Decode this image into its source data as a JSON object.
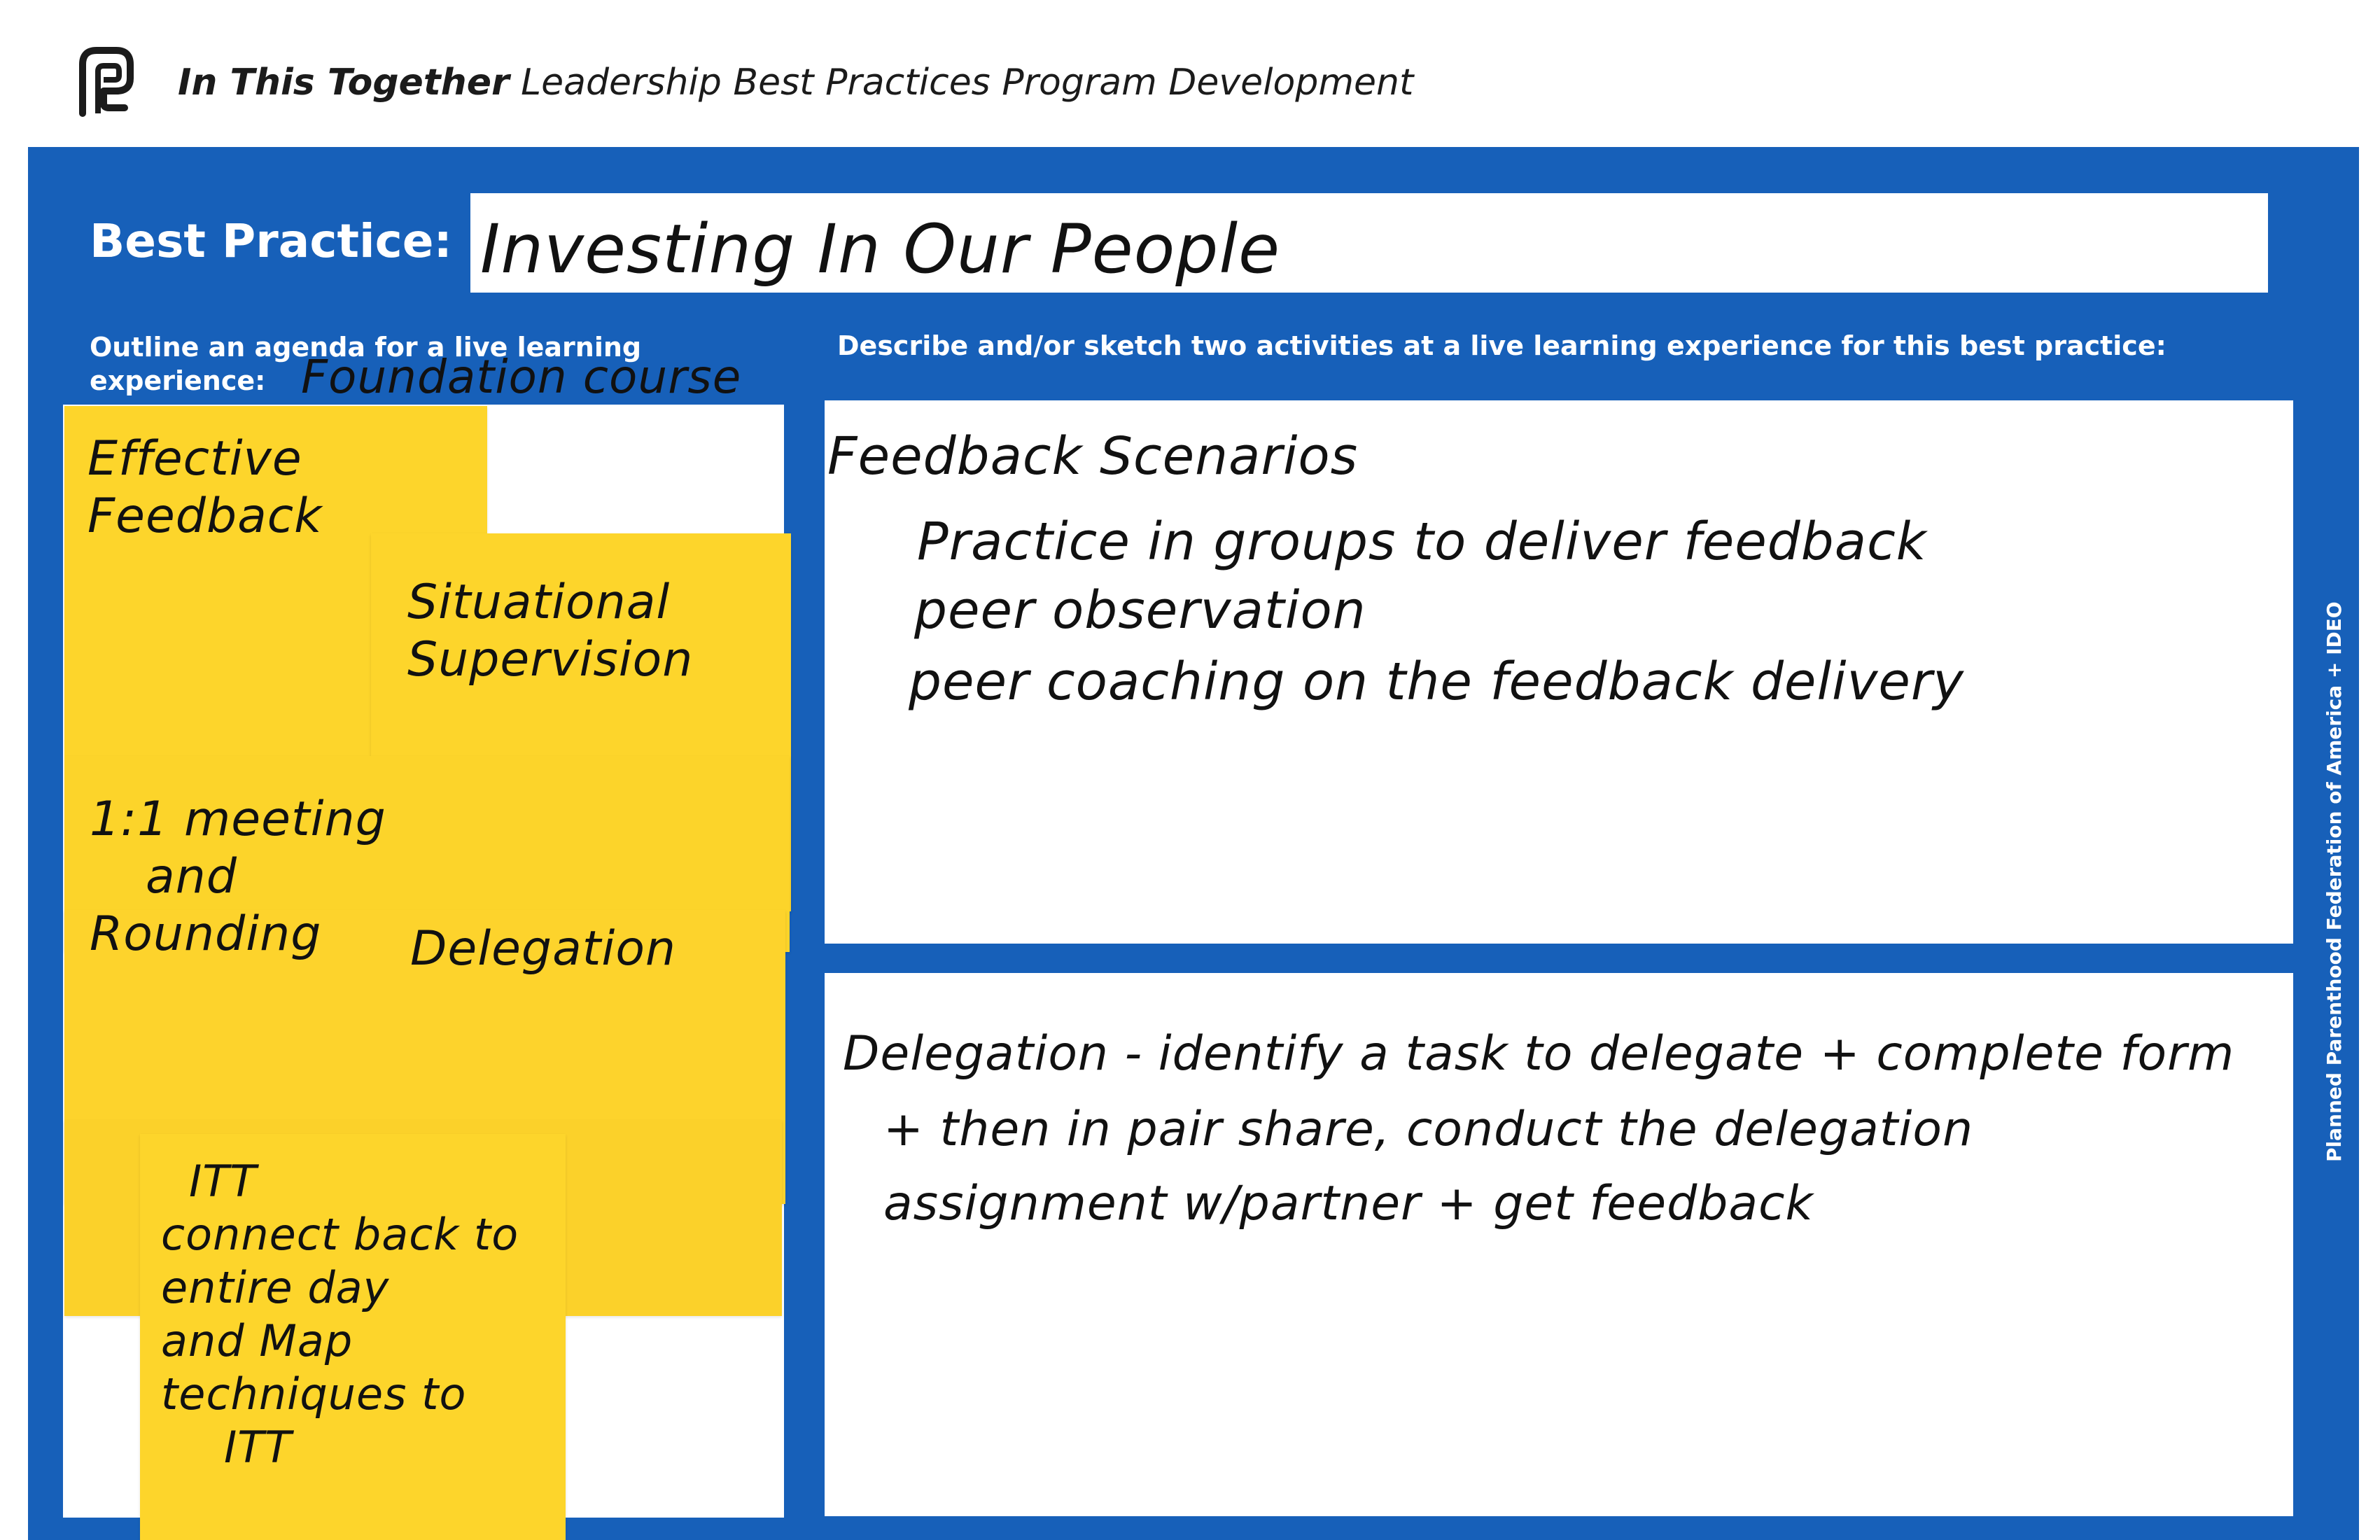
{
  "header": {
    "brand_bold": "In This Together",
    "title_rest": "Leadership Best Practices Program Development",
    "logo_icon": "planned-parenthood-logo-icon"
  },
  "best_practice": {
    "label": "Best Practice:",
    "value": "Investing In Our People"
  },
  "agenda": {
    "prompt": "Outline an agenda for a live learning experience:",
    "course": "Foundation course",
    "notes": [
      [
        "Effective",
        "Feedback"
      ],
      [
        "Situational",
        "Supervision"
      ],
      [
        "1:1 meeting",
        "and",
        "Rounding"
      ],
      [
        "Delegation"
      ],
      [
        "ITT",
        "connect back to",
        "entire day",
        "and Map",
        "techniques to",
        "ITT"
      ]
    ]
  },
  "activities": {
    "prompt": "Describe and/or sketch two activities at a live learning experience for this best practice:",
    "activity1": {
      "title": "Feedback Scenarios",
      "lines": [
        "Practice in groups to deliver feedback",
        "peer observation",
        "peer coaching on the feedback delivery"
      ]
    },
    "activity2": {
      "lines": [
        "Delegation - identify a task to delegate + complete form",
        "+ then in pair share, conduct the delegation",
        "assignment w/partner + get feedback"
      ]
    }
  },
  "credit": "Planned Parenthood Federation of America + IDEO",
  "colors": {
    "board_blue": "#1760b9",
    "sticky_yellow": "#fdd52b"
  }
}
